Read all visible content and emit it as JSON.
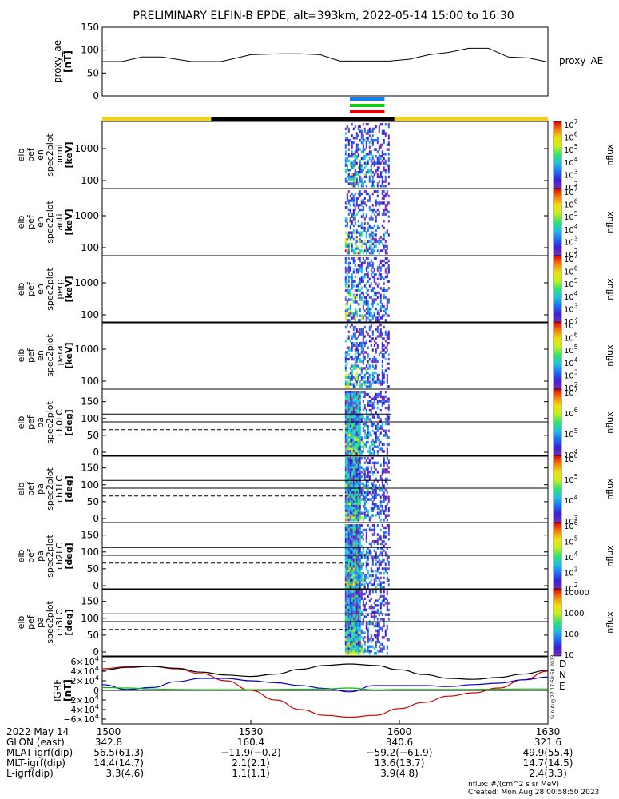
{
  "title": "PRELIMINARY ELFIN-B EPDE, alt=393km, 2022-05-14 15:00 to 16:30",
  "proxy_panel": {
    "ylabel_lines": [
      "proxy_ae",
      "[nT]"
    ],
    "right_label": "proxy_AE",
    "yticks": [
      "150",
      "100",
      "50",
      "0"
    ]
  },
  "spec_panels": [
    {
      "ylabel_lines": [
        "elb",
        "pef",
        "en",
        "spec2plot",
        "omni",
        "[keV]"
      ],
      "yticks": [
        "1000",
        "100"
      ],
      "cbar_label": "nflux"
    },
    {
      "ylabel_lines": [
        "elb",
        "pef",
        "en",
        "spec2plot",
        "anti",
        "[keV]"
      ],
      "yticks": [
        "1000",
        "100"
      ],
      "cbar_label": "nflux"
    },
    {
      "ylabel_lines": [
        "elb",
        "pef",
        "en",
        "spec2plot",
        "perp",
        "[keV]"
      ],
      "yticks": [
        "1000",
        "100"
      ],
      "cbar_label": "nflux"
    },
    {
      "ylabel_lines": [
        "elb",
        "pef",
        "en",
        "spec2plot",
        "para",
        "[keV]"
      ],
      "yticks": [
        "1000",
        "100"
      ],
      "cbar_label": "nflux"
    },
    {
      "ylabel_lines": [
        "elb",
        "pef",
        "pa",
        "spec2plot",
        "ch0LC",
        "[deg]"
      ],
      "yticks": [
        "150",
        "100",
        "50",
        "0"
      ],
      "cbar_label": "nflux"
    },
    {
      "ylabel_lines": [
        "elb",
        "pef",
        "pa",
        "spec2plot",
        "ch1LC",
        "[deg]"
      ],
      "yticks": [
        "150",
        "100",
        "50",
        "0"
      ],
      "cbar_label": "nflux"
    },
    {
      "ylabel_lines": [
        "elb",
        "pef",
        "pa",
        "spec2plot",
        "ch2LC",
        "[deg]"
      ],
      "yticks": [
        "150",
        "100",
        "50",
        "0"
      ],
      "cbar_label": "nflux"
    },
    {
      "ylabel_lines": [
        "elb",
        "pef",
        "pa",
        "spec2plot",
        "ch3LC",
        "[deg]"
      ],
      "yticks": [
        "150",
        "100",
        "50",
        "0"
      ],
      "cbar_label": "nflux"
    }
  ],
  "colorbars": [
    {
      "labels": [
        "10^7",
        "10^6",
        "10^5",
        "10^4",
        "10^3",
        "10^2"
      ]
    },
    {
      "labels": [
        "10^7",
        "10^6",
        "10^5",
        "10^4",
        "10^3",
        "10^2"
      ]
    },
    {
      "labels": [
        "10^7",
        "10^6",
        "10^5",
        "10^4",
        "10^3",
        "10^2"
      ]
    },
    {
      "labels": [
        "10^7",
        "10^6",
        "10^5",
        "10^4",
        "10^3",
        "10^2"
      ]
    },
    {
      "labels": [
        "10^7",
        "10^6",
        "10^5",
        "10^4"
      ]
    },
    {
      "labels": [
        "10^6",
        "10^5",
        "10^4",
        "10^3"
      ]
    },
    {
      "labels": [
        "10^6",
        "10^5",
        "10^4",
        "10^3",
        "10^2"
      ]
    },
    {
      "labels": [
        "10000",
        "1000",
        "100",
        "10"
      ]
    }
  ],
  "igrf_panel": {
    "ylabel_lines": [
      "IGRF",
      "[nT]"
    ],
    "yticks": [
      "6×10^4",
      "4×10^4",
      "2×10^4",
      "0",
      "−2×10^4",
      "−4×10^4",
      "−6×10^4"
    ],
    "legend": [
      {
        "label": "D",
        "color": "#d00000"
      },
      {
        "label": "N",
        "color": "#0000d0"
      },
      {
        "label": "E",
        "color": "#00c000"
      }
    ],
    "side_stamp": "Sun Aug 27 17:58:50 2023"
  },
  "chart_data": {
    "type": "line",
    "x_unit": "UT",
    "xlim": [
      "15:00",
      "16:30"
    ],
    "time_ticks": [
      "1500",
      "1530",
      "1600",
      "1630"
    ],
    "series": [
      {
        "name": "proxy_AE",
        "x": [
          "15:00",
          "15:04",
          "15:08",
          "15:12",
          "15:18",
          "15:24",
          "15:30",
          "15:36",
          "15:40",
          "15:44",
          "15:48",
          "15:54",
          "15:58",
          "16:02",
          "16:06",
          "16:10",
          "16:14",
          "16:18",
          "16:22",
          "16:26",
          "16:30"
        ],
        "values": [
          75,
          75,
          85,
          85,
          75,
          75,
          90,
          92,
          92,
          90,
          76,
          76,
          76,
          80,
          90,
          95,
          104,
          104,
          85,
          83,
          74
        ],
        "ylim": [
          0,
          150
        ]
      },
      {
        "name": "D",
        "x": [
          "15:00",
          "15:05",
          "15:10",
          "15:15",
          "15:20",
          "15:25",
          "15:30",
          "15:35",
          "15:40",
          "15:45",
          "15:50",
          "15:55",
          "16:00",
          "16:05",
          "16:10",
          "16:15",
          "16:20",
          "16:25",
          "16:30"
        ],
        "values": [
          45000,
          49000,
          50000,
          45000,
          35000,
          20000,
          0,
          -20000,
          -40000,
          -52000,
          -56000,
          -52000,
          -38000,
          -25000,
          -12000,
          -5000,
          5000,
          22000,
          40000
        ],
        "ylim": [
          -70000,
          70000
        ]
      },
      {
        "name": "N",
        "x": [
          "15:00",
          "15:05",
          "15:10",
          "15:15",
          "15:20",
          "15:25",
          "15:30",
          "15:35",
          "15:40",
          "15:45",
          "15:50",
          "15:55",
          "16:00",
          "16:05",
          "16:10",
          "16:15",
          "16:20",
          "16:25",
          "16:30"
        ],
        "values": [
          12000,
          2000,
          6000,
          18000,
          25000,
          25000,
          20000,
          16000,
          10000,
          4000,
          -3000,
          10000,
          10000,
          10000,
          8000,
          12000,
          15000,
          22000,
          28000
        ],
        "ylim": [
          -70000,
          70000
        ]
      },
      {
        "name": "E",
        "x": [
          "15:00",
          "15:05",
          "15:10",
          "15:15",
          "15:20",
          "15:25",
          "15:30",
          "15:35",
          "15:40",
          "15:45",
          "15:50",
          "15:55",
          "16:00",
          "16:05",
          "16:10",
          "16:15",
          "16:20",
          "16:25",
          "16:30"
        ],
        "values": [
          6000,
          5000,
          3000,
          2000,
          1500,
          1500,
          1500,
          2000,
          2500,
          3000,
          5000,
          1000,
          2000,
          2000,
          2000,
          2000,
          2500,
          3000,
          3000
        ],
        "ylim": [
          -70000,
          70000
        ]
      },
      {
        "name": "total",
        "x": [
          "15:00",
          "15:05",
          "15:10",
          "15:15",
          "15:20",
          "15:25",
          "15:30",
          "15:35",
          "15:40",
          "15:45",
          "15:50",
          "15:55",
          "16:00",
          "16:05",
          "16:10",
          "16:15",
          "16:20",
          "16:25",
          "16:30"
        ],
        "values": [
          42000,
          48000,
          50000,
          46000,
          38000,
          32000,
          29000,
          34000,
          44000,
          52000,
          55000,
          52000,
          43000,
          33000,
          25000,
          23000,
          27000,
          34000,
          42000
        ],
        "ylim": [
          -70000,
          70000
        ]
      }
    ],
    "science_zone": {
      "start": "15:49",
      "end": "15:58"
    },
    "orbit_bar": [
      {
        "start": "15:00",
        "end": "15:22",
        "color": "#f0d020"
      },
      {
        "start": "15:22",
        "end": "15:59",
        "color": "#000000"
      },
      {
        "start": "15:59",
        "end": "16:30",
        "color": "#f0d020"
      }
    ],
    "data_markers": [
      {
        "start": "15:50",
        "end": "15:57",
        "color": "#1080f0"
      },
      {
        "start": "15:50",
        "end": "15:57",
        "color": "#10d010"
      },
      {
        "start": "15:50",
        "end": "15:57",
        "color": "#e00000"
      }
    ]
  },
  "footer": {
    "rows": [
      {
        "label": "2022 May 14",
        "values": [
          "1500",
          "1530",
          "1600",
          "1630"
        ]
      },
      {
        "label": "GLON (east)",
        "values": [
          "342.8",
          "160.4",
          "340.6",
          "321.6"
        ]
      },
      {
        "label": "MLAT-igrf(dip)",
        "values": [
          "56.5(61.3)",
          "−11.9(−0.2)",
          "−59.2(−61.9)",
          "49.9(55.4)"
        ]
      },
      {
        "label": "MLT-igrf(dip)",
        "values": [
          "14.4(14.7)",
          "2.1(2.1)",
          "13.6(13.7)",
          "14.7(14.5)"
        ]
      },
      {
        "label": "L-igrf(dip)",
        "values": [
          "3.3(4.6)",
          "1.1(1.1)",
          "3.9(4.8)",
          "2.4(3.3)"
        ]
      }
    ],
    "nflux_units": "nflux: #/(cm^2 s sr MeV)",
    "created": "Created: Mon Aug 28 00:58:50 2023"
  }
}
